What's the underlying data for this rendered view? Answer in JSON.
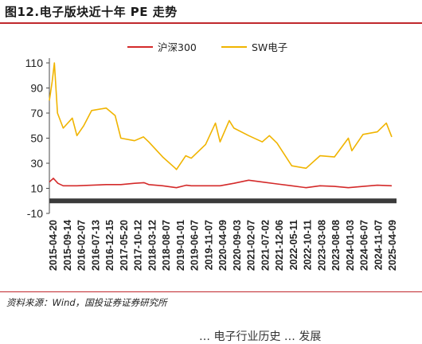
{
  "title": "图12.电子版块近十年 PE 走势",
  "source": "资料来源：Wind，国投证券证券研究所",
  "clipped_text": "…  电子行业历史 …  发展",
  "colors": {
    "accent": "#c0282d",
    "csi300": "#d42a2a",
    "sw_electronics": "#f0b400",
    "axis": "#4a4a4a"
  },
  "chart_data": {
    "type": "line",
    "title": "",
    "xlabel": "",
    "ylabel": "",
    "ylim": [
      -10,
      110
    ],
    "yticks": [
      "-10",
      "10",
      "30",
      "50",
      "70",
      "90",
      "110"
    ],
    "grid": false,
    "legend_position": "top",
    "x_tick_labels": [
      "2015-04-20",
      "2015-09-14",
      "2016-02-07",
      "2016-07-13",
      "2016-12-15",
      "2017-05-20",
      "2017-10-12",
      "2018-03-12",
      "2018-08-07",
      "2019-01-01",
      "2019-06-07",
      "2019-11-07",
      "2020-04-09",
      "2020-09-03",
      "2021-02-07",
      "2021-07-02",
      "2021-12-06",
      "2022-05-11",
      "2022-10-11",
      "2023-03-08",
      "2023-08-08",
      "2024-01-03",
      "2024-06-07",
      "2024-11-07",
      "2025-04-09"
    ],
    "x_range": [
      "2015-04-20",
      "2025-04-09"
    ],
    "series": [
      {
        "name": "沪深300",
        "color": "#d42a2a",
        "points": [
          [
            "2015-04-20",
            15
          ],
          [
            "2015-06-01",
            18
          ],
          [
            "2015-07-20",
            14
          ],
          [
            "2015-09-14",
            12
          ],
          [
            "2016-02-07",
            12
          ],
          [
            "2016-07-13",
            12.5
          ],
          [
            "2016-12-15",
            13
          ],
          [
            "2017-05-20",
            13
          ],
          [
            "2017-10-12",
            14
          ],
          [
            "2018-01-20",
            14.5
          ],
          [
            "2018-03-12",
            13
          ],
          [
            "2018-08-07",
            12
          ],
          [
            "2019-01-01",
            10.5
          ],
          [
            "2019-04-15",
            12.5
          ],
          [
            "2019-06-07",
            12
          ],
          [
            "2019-11-07",
            12
          ],
          [
            "2020-04-09",
            12
          ],
          [
            "2020-09-03",
            14
          ],
          [
            "2021-02-07",
            16.5
          ],
          [
            "2021-07-02",
            15
          ],
          [
            "2021-12-06",
            13.5
          ],
          [
            "2022-05-11",
            12
          ],
          [
            "2022-10-11",
            10.5
          ],
          [
            "2023-03-08",
            12
          ],
          [
            "2023-08-08",
            11.5
          ],
          [
            "2024-01-03",
            10.5
          ],
          [
            "2024-06-07",
            11.5
          ],
          [
            "2024-11-07",
            12.5
          ],
          [
            "2025-04-09",
            12
          ]
        ]
      },
      {
        "name": "SW电子",
        "color": "#f0b400",
        "points": [
          [
            "2015-04-20",
            80
          ],
          [
            "2015-05-20",
            95
          ],
          [
            "2015-06-12",
            110
          ],
          [
            "2015-07-15",
            70
          ],
          [
            "2015-09-14",
            58
          ],
          [
            "2015-12-20",
            66
          ],
          [
            "2016-02-07",
            52
          ],
          [
            "2016-04-20",
            60
          ],
          [
            "2016-07-13",
            72
          ],
          [
            "2016-12-15",
            74
          ],
          [
            "2017-03-20",
            68
          ],
          [
            "2017-05-20",
            50
          ],
          [
            "2017-10-12",
            48
          ],
          [
            "2018-01-15",
            51
          ],
          [
            "2018-03-12",
            47
          ],
          [
            "2018-08-07",
            35
          ],
          [
            "2018-12-20",
            26
          ],
          [
            "2019-01-01",
            25
          ],
          [
            "2019-04-10",
            36
          ],
          [
            "2019-06-07",
            34
          ],
          [
            "2019-11-07",
            45
          ],
          [
            "2020-02-20",
            62
          ],
          [
            "2020-04-09",
            47
          ],
          [
            "2020-07-15",
            64
          ],
          [
            "2020-09-03",
            58
          ],
          [
            "2021-02-07",
            52
          ],
          [
            "2021-07-02",
            47
          ],
          [
            "2021-09-15",
            52
          ],
          [
            "2021-12-06",
            46
          ],
          [
            "2022-05-11",
            28
          ],
          [
            "2022-10-11",
            26
          ],
          [
            "2023-03-08",
            36
          ],
          [
            "2023-08-08",
            35
          ],
          [
            "2024-01-03",
            50
          ],
          [
            "2024-02-10",
            40
          ],
          [
            "2024-06-07",
            53
          ],
          [
            "2024-11-07",
            55
          ],
          [
            "2025-02-10",
            62
          ],
          [
            "2025-04-09",
            51
          ]
        ]
      }
    ]
  }
}
